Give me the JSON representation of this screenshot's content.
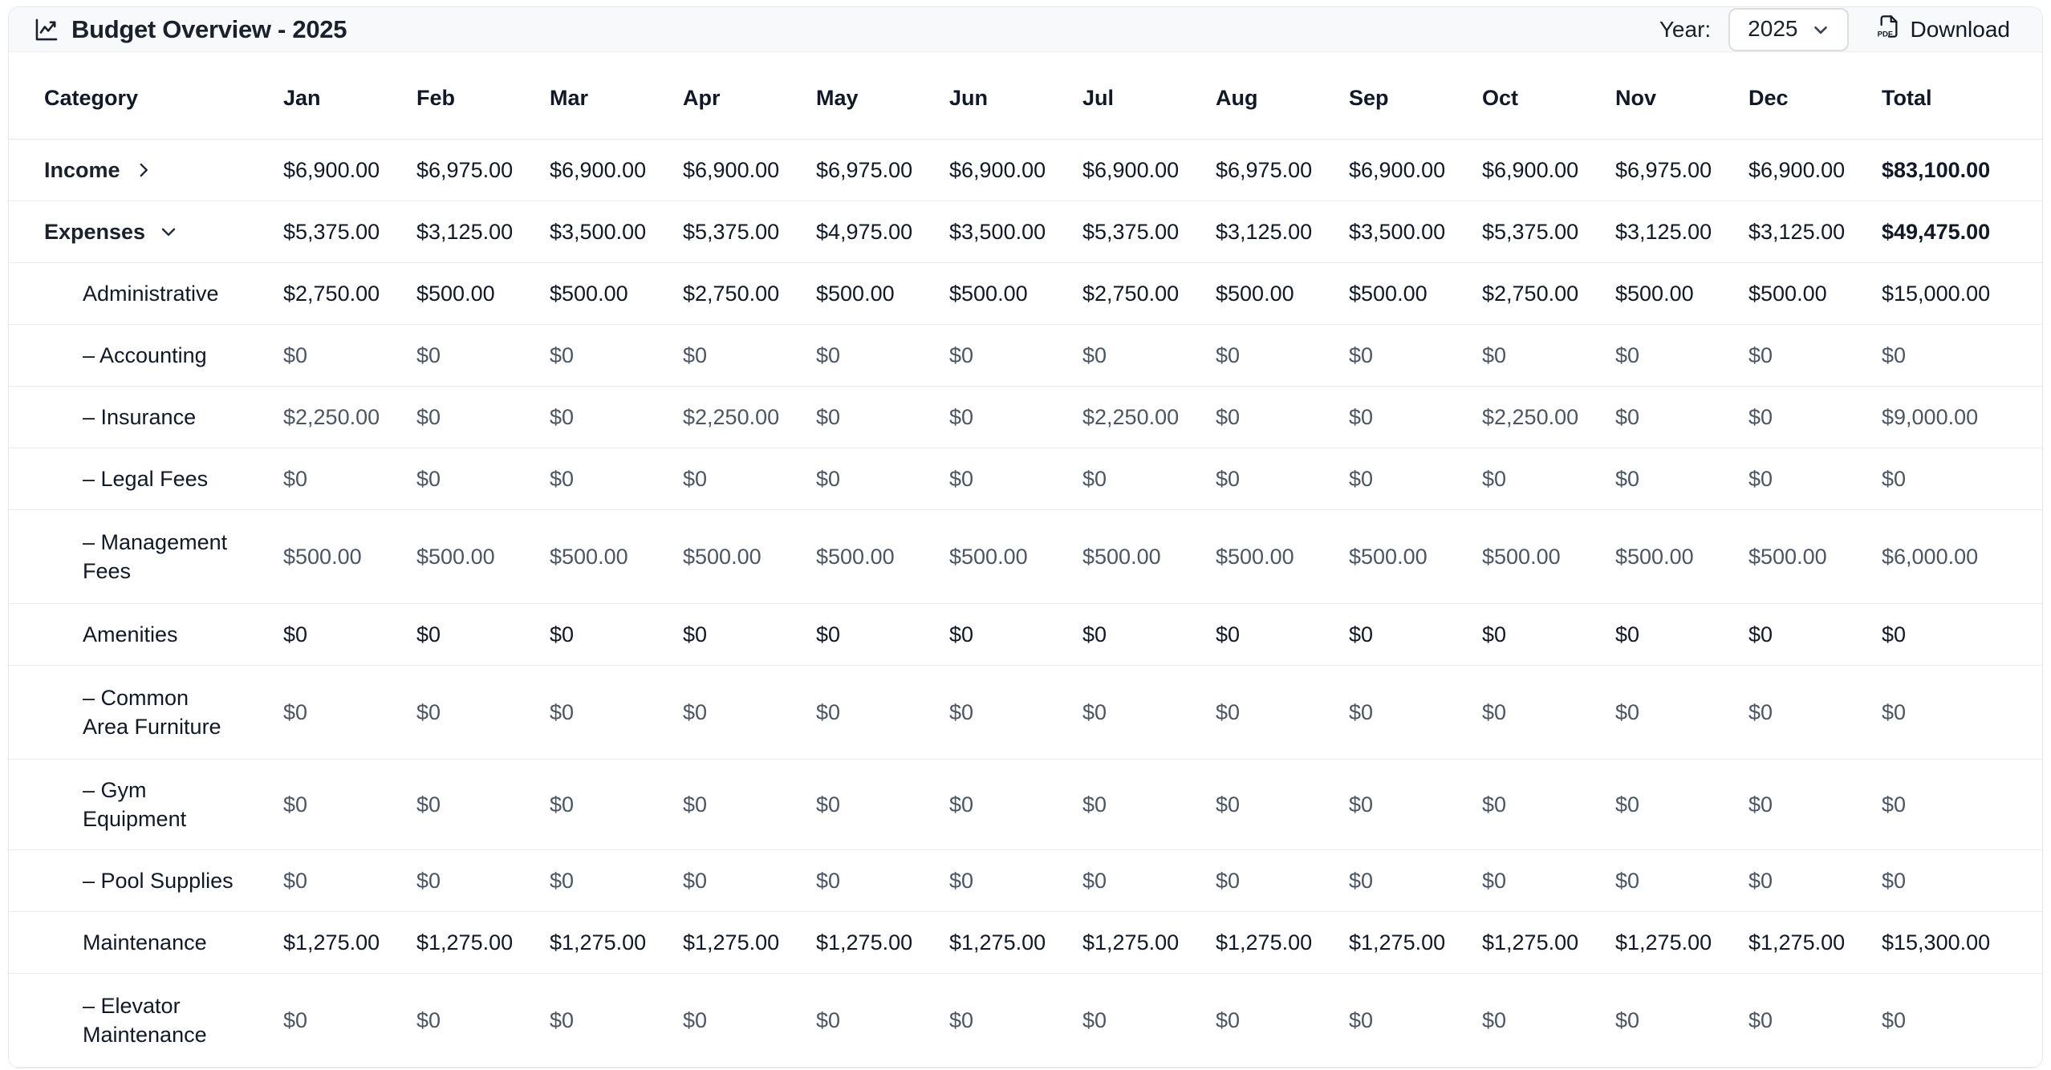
{
  "header": {
    "title": "Budget Overview - 2025",
    "title_icon": "chart-line-icon",
    "year_label": "Year:",
    "year_value": "2025",
    "download_label": "Download",
    "download_icon": "pdf-file-icon"
  },
  "colors": {
    "header_bg": "#f8f9fa",
    "card_border": "#e5e7eb",
    "row_divider": "#e9ebee",
    "text_dark": "#111827",
    "text_gray": "#4b5563"
  },
  "table": {
    "columns": [
      "Category",
      "Jan",
      "Feb",
      "Mar",
      "Apr",
      "May",
      "Jun",
      "Jul",
      "Aug",
      "Sep",
      "Oct",
      "Nov",
      "Dec",
      "Total"
    ],
    "rows": [
      {
        "label": "Income",
        "level": 0,
        "expand_state": "collapsed",
        "chevron": "right",
        "values": [
          "$6,900.00",
          "$6,975.00",
          "$6,900.00",
          "$6,900.00",
          "$6,975.00",
          "$6,900.00",
          "$6,900.00",
          "$6,975.00",
          "$6,900.00",
          "$6,900.00",
          "$6,975.00",
          "$6,900.00"
        ],
        "total": "$83,100.00"
      },
      {
        "label": "Expenses",
        "level": 0,
        "expand_state": "expanded",
        "chevron": "down",
        "values": [
          "$5,375.00",
          "$3,125.00",
          "$3,500.00",
          "$5,375.00",
          "$4,975.00",
          "$3,500.00",
          "$5,375.00",
          "$3,125.00",
          "$3,500.00",
          "$5,375.00",
          "$3,125.00",
          "$3,125.00"
        ],
        "total": "$49,475.00"
      },
      {
        "label": "Administrative",
        "level": 1,
        "values": [
          "$2,750.00",
          "$500.00",
          "$500.00",
          "$2,750.00",
          "$500.00",
          "$500.00",
          "$2,750.00",
          "$500.00",
          "$500.00",
          "$2,750.00",
          "$500.00",
          "$500.00"
        ],
        "total": "$15,000.00"
      },
      {
        "label": "– Accounting",
        "level": 2,
        "values": [
          "$0",
          "$0",
          "$0",
          "$0",
          "$0",
          "$0",
          "$0",
          "$0",
          "$0",
          "$0",
          "$0",
          "$0"
        ],
        "total": "$0"
      },
      {
        "label": "– Insurance",
        "level": 2,
        "values": [
          "$2,250.00",
          "$0",
          "$0",
          "$2,250.00",
          "$0",
          "$0",
          "$2,250.00",
          "$0",
          "$0",
          "$2,250.00",
          "$0",
          "$0"
        ],
        "total": "$9,000.00"
      },
      {
        "label": "– Legal Fees",
        "level": 2,
        "values": [
          "$0",
          "$0",
          "$0",
          "$0",
          "$0",
          "$0",
          "$0",
          "$0",
          "$0",
          "$0",
          "$0",
          "$0"
        ],
        "total": "$0"
      },
      {
        "label": "– Management Fees",
        "level": 2,
        "values": [
          "$500.00",
          "$500.00",
          "$500.00",
          "$500.00",
          "$500.00",
          "$500.00",
          "$500.00",
          "$500.00",
          "$500.00",
          "$500.00",
          "$500.00",
          "$500.00"
        ],
        "total": "$6,000.00"
      },
      {
        "label": "Amenities",
        "level": 1,
        "values": [
          "$0",
          "$0",
          "$0",
          "$0",
          "$0",
          "$0",
          "$0",
          "$0",
          "$0",
          "$0",
          "$0",
          "$0"
        ],
        "total": "$0"
      },
      {
        "label": "– Common Area Furniture",
        "level": 2,
        "values": [
          "$0",
          "$0",
          "$0",
          "$0",
          "$0",
          "$0",
          "$0",
          "$0",
          "$0",
          "$0",
          "$0",
          "$0"
        ],
        "total": "$0"
      },
      {
        "label": "– Gym Equipment",
        "level": 2,
        "values": [
          "$0",
          "$0",
          "$0",
          "$0",
          "$0",
          "$0",
          "$0",
          "$0",
          "$0",
          "$0",
          "$0",
          "$0"
        ],
        "total": "$0"
      },
      {
        "label": "– Pool Supplies",
        "level": 2,
        "values": [
          "$0",
          "$0",
          "$0",
          "$0",
          "$0",
          "$0",
          "$0",
          "$0",
          "$0",
          "$0",
          "$0",
          "$0"
        ],
        "total": "$0"
      },
      {
        "label": "Maintenance",
        "level": 1,
        "values": [
          "$1,275.00",
          "$1,275.00",
          "$1,275.00",
          "$1,275.00",
          "$1,275.00",
          "$1,275.00",
          "$1,275.00",
          "$1,275.00",
          "$1,275.00",
          "$1,275.00",
          "$1,275.00",
          "$1,275.00"
        ],
        "total": "$15,300.00"
      },
      {
        "label": "– Elevator Maintenance",
        "level": 2,
        "values": [
          "$0",
          "$0",
          "$0",
          "$0",
          "$0",
          "$0",
          "$0",
          "$0",
          "$0",
          "$0",
          "$0",
          "$0"
        ],
        "total": "$0"
      }
    ]
  }
}
